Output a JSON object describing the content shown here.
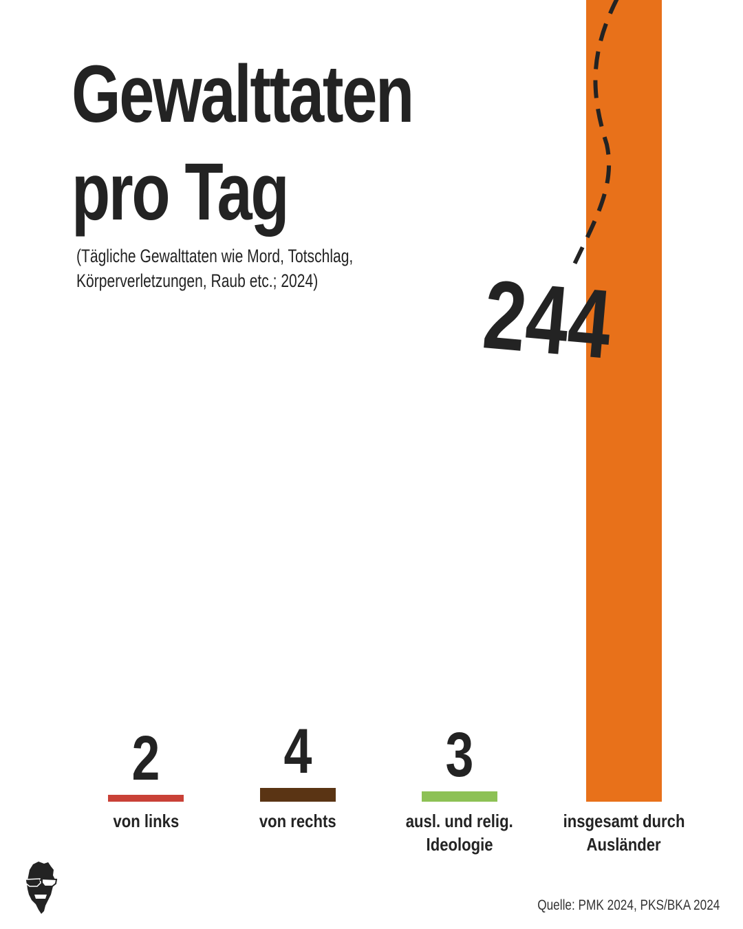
{
  "title_line1": "Gewalttaten",
  "title_line2": "pro Tag",
  "subtitle_line1": "(Tägliche Gewalttaten wie Mord, Totschlag,",
  "subtitle_line2": "Körperverletzungen, Raub etc.; 2024)",
  "source": "Quelle: PMK 2024, PKS/BKA 2024",
  "logo_icon": "face-with-sunglasses-icon",
  "chart_data": {
    "type": "bar",
    "categories": [
      "von links",
      "von rechts",
      "ausl. und relig. Ideologie",
      "insgesamt durch Ausländer"
    ],
    "category_lines": [
      [
        "von links"
      ],
      [
        "von rechts"
      ],
      [
        "ausl. und relig.",
        "Ideologie"
      ],
      [
        "insgesamt durch",
        "Ausländer"
      ]
    ],
    "values": [
      2,
      4,
      3,
      244
    ],
    "value_labels": [
      "2",
      "4",
      "3",
      "244"
    ],
    "colors": [
      "#c94137",
      "#5a3414",
      "#8dc155",
      "#e8711a"
    ],
    "last_bar_exceeds_top": true
  }
}
